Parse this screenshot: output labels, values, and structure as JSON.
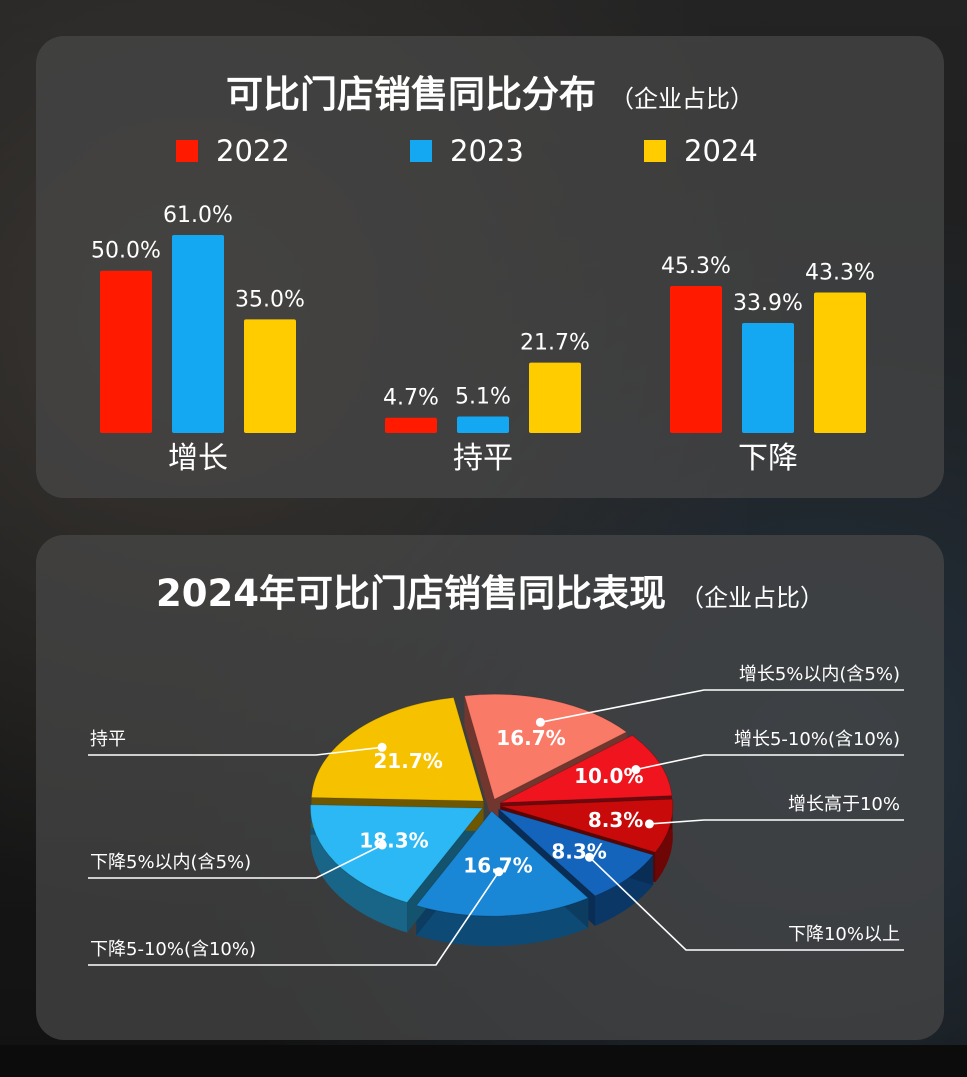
{
  "colors": {
    "series_2022": "#ff1a00",
    "series_2023": "#14a8f2",
    "series_2024": "#ffcc00"
  },
  "bar_panel": {
    "title": "可比门店销售同比分布",
    "title_note": "（企业占比）"
  },
  "pie_panel": {
    "title": "2024年可比门店销售同比表现",
    "title_note": "（企业占比）"
  },
  "chart_data": [
    {
      "type": "bar",
      "title": "可比门店销售同比分布（企业占比）",
      "categories": [
        "增长",
        "持平",
        "下降"
      ],
      "series": [
        {
          "name": "2022",
          "values": [
            50.0,
            4.7,
            45.3
          ],
          "labels": [
            "50.0%",
            "4.7%",
            "45.3%"
          ]
        },
        {
          "name": "2023",
          "values": [
            61.0,
            5.1,
            33.9
          ],
          "labels": [
            "61.0%",
            "5.1%",
            "33.9%"
          ]
        },
        {
          "name": "2024",
          "values": [
            35.0,
            21.7,
            43.3
          ],
          "labels": [
            "35.0%",
            "21.7%",
            "43.3%"
          ]
        }
      ],
      "ylim": [
        0,
        70
      ],
      "grid": false,
      "legend": "top"
    },
    {
      "type": "pie",
      "title": "2024年可比门店销售同比表现（企业占比）",
      "slices": [
        {
          "name": "增长5%以内(含5%)",
          "value": 16.7,
          "label": "16.7%",
          "color": "#fa7a68"
        },
        {
          "name": "增长5-10%(含10%)",
          "value": 10.0,
          "label": "10.0%",
          "color": "#f0141e"
        },
        {
          "name": "增长高于10%",
          "value": 8.3,
          "label": "8.3%",
          "color": "#c80a0a"
        },
        {
          "name": "下降10%以上",
          "value": 8.3,
          "label": "8.3%",
          "color": "#1464bc"
        },
        {
          "name": "下降5-10%(含10%)",
          "value": 16.7,
          "label": "16.7%",
          "color": "#1a86d6"
        },
        {
          "name": "下降5%以内(含5%)",
          "value": 18.3,
          "label": "18.3%",
          "color": "#2cb8f5"
        },
        {
          "name": "持平",
          "value": 21.7,
          "label": "21.7%",
          "color": "#f6c200"
        }
      ],
      "legend": "callouts"
    }
  ]
}
